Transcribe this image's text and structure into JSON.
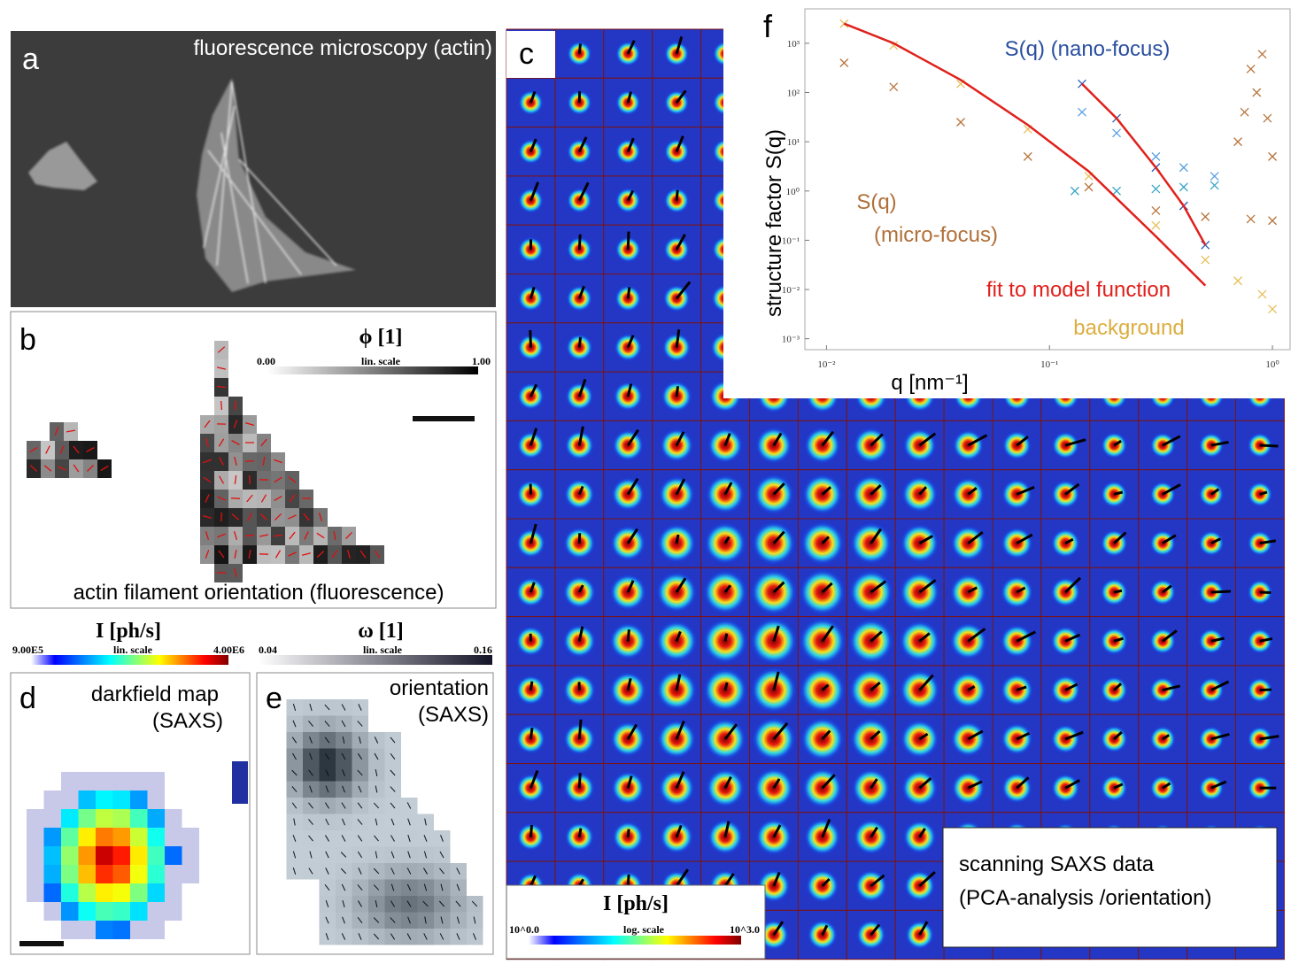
{
  "panels": {
    "a": {
      "label": "a",
      "title": "fluorescence microscopy (actin)"
    },
    "b": {
      "label": "b",
      "colorbar": {
        "title": "ϕ [1]",
        "min": "0.00",
        "scale": "lin. scale",
        "max": "1.00"
      },
      "caption": "actin filament orientation (fluorescence)"
    },
    "c": {
      "label": "c",
      "colorbar": {
        "title": "I [ph/s]",
        "min": "10^0.0",
        "scale": "log. scale",
        "max": "10^3.0"
      },
      "note": [
        "scanning SAXS data",
        "(PCA-analysis /orientation)"
      ]
    },
    "d": {
      "label": "d",
      "colorbar": {
        "title": "I [ph/s]",
        "min": "9.00E5",
        "scale": "lin. scale",
        "max": "4.00E6"
      },
      "title": [
        "darkfield map",
        "(SAXS)"
      ]
    },
    "e": {
      "label": "e",
      "colorbar": {
        "title": "ω [1]",
        "min": "0.04",
        "scale": "lin. scale",
        "max": "0.16"
      },
      "title": [
        "orientation",
        "(SAXS)"
      ]
    }
  },
  "chart_data": {
    "type": "scatter",
    "label": "f",
    "xlabel": "q [nm⁻¹]",
    "ylabel": "structure factor  S(q)",
    "log_x": true,
    "log_y": true,
    "xlim": [
      0.008,
      1.2
    ],
    "ylim": [
      0.0006,
      5000
    ],
    "xticks": [
      {
        "value": 0.01,
        "label": "10⁻²"
      },
      {
        "value": 0.1,
        "label": "10⁻¹"
      },
      {
        "value": 1,
        "label": "10⁰"
      }
    ],
    "yticks": [
      {
        "value": 0.001,
        "label": "10⁻³"
      },
      {
        "value": 0.01,
        "label": "10⁻²"
      },
      {
        "value": 0.1,
        "label": "10⁻¹"
      },
      {
        "value": 1,
        "label": "10⁰"
      },
      {
        "value": 10,
        "label": "10¹"
      },
      {
        "value": 100,
        "label": "10²"
      },
      {
        "value": 1000,
        "label": "10³"
      }
    ],
    "series": [
      {
        "color": "#e8bf5a",
        "marker": "x",
        "x": [
          0.012,
          0.02,
          0.04,
          0.08,
          0.15,
          0.3,
          0.5,
          0.7,
          0.9,
          1.0
        ],
        "values": [
          2500,
          900,
          150,
          18,
          2,
          0.2,
          0.04,
          0.015,
          0.008,
          0.004
        ]
      },
      {
        "color": "#b8743d",
        "marker": "x",
        "x": [
          0.012,
          0.02,
          0.04,
          0.08,
          0.15,
          0.3,
          0.5,
          0.8,
          1.0
        ],
        "values": [
          400,
          130,
          25,
          5,
          1.2,
          0.4,
          0.3,
          0.27,
          0.25
        ]
      },
      {
        "color": "#2a5bb8",
        "marker": "x",
        "x": [
          0.14,
          0.2,
          0.3,
          0.4,
          0.5
        ],
        "values": [
          150,
          30,
          3,
          0.5,
          0.08
        ]
      },
      {
        "color": "#5aa0e0",
        "marker": "x",
        "x": [
          0.14,
          0.2,
          0.3,
          0.4,
          0.55
        ],
        "values": [
          40,
          15,
          5,
          3,
          2
        ]
      },
      {
        "color": "#3aa6c8",
        "marker": "x",
        "x": [
          0.13,
          0.2,
          0.3,
          0.4,
          0.55
        ],
        "values": [
          1.0,
          1.0,
          1.1,
          1.2,
          1.3
        ]
      },
      {
        "color": "#b8743d",
        "marker": "x",
        "x": [
          0.7,
          0.75,
          0.8,
          0.85,
          0.9,
          0.95,
          1.0
        ],
        "values": [
          10,
          40,
          300,
          100,
          600,
          30,
          5
        ]
      },
      {
        "color": "#e0201b",
        "marker": "line",
        "x": [
          0.012,
          0.02,
          0.04,
          0.08,
          0.15,
          0.3,
          0.5
        ],
        "values": [
          2500,
          1000,
          180,
          22,
          2.5,
          0.12,
          0.012
        ]
      },
      {
        "color": "#e0201b",
        "marker": "line",
        "x": [
          0.14,
          0.2,
          0.3,
          0.4,
          0.5
        ],
        "values": [
          150,
          30,
          3,
          0.5,
          0.08
        ]
      }
    ],
    "annotations": [
      {
        "text": "S(q) (nano-focus)",
        "color": "#2a4fa0"
      },
      {
        "text": "S(q)",
        "color": "#b0703a"
      },
      {
        "text": "(micro-focus)",
        "color": "#b0703a"
      },
      {
        "text": "fit to model function",
        "color": "#e0201b"
      },
      {
        "text": "background",
        "color": "#dcae40"
      }
    ]
  }
}
